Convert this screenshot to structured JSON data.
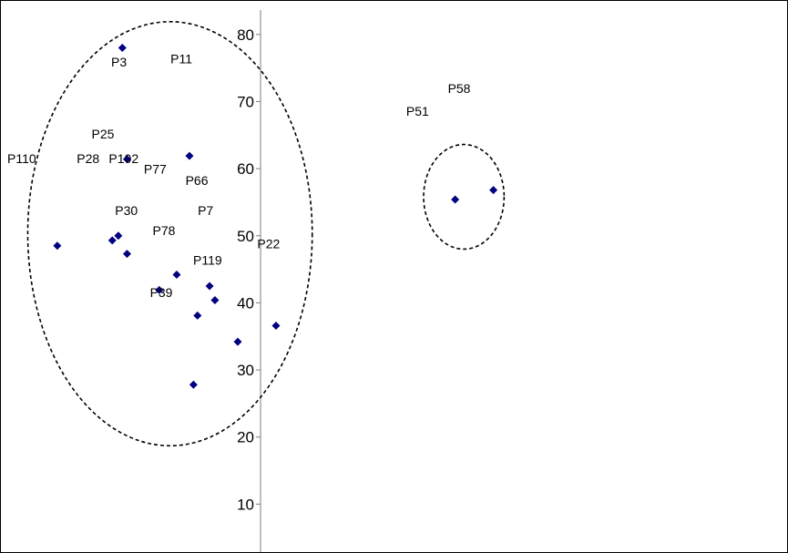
{
  "chart_data": {
    "type": "scatter",
    "title": "",
    "xlabel": "",
    "ylabel": "",
    "ylim": [
      0,
      84
    ],
    "xlim": [
      -38.7,
      36.3
    ],
    "y_ticks": [
      10,
      20,
      30,
      40,
      50,
      60,
      70,
      80
    ],
    "y_tick_labels": [
      "10",
      "20",
      "30",
      "40",
      "50",
      "60",
      "70",
      "80"
    ],
    "grid": false,
    "legend": "none",
    "marker": "diamond",
    "marker_color": "#000080",
    "points": [
      {
        "x": -30.3,
        "y": 48.5
      },
      {
        "x": -22.1,
        "y": 49.3
      },
      {
        "x": -21.2,
        "y": 50.0
      },
      {
        "x": -20.6,
        "y": 78.0
      },
      {
        "x": -19.9,
        "y": 61.4
      },
      {
        "x": -19.9,
        "y": 47.3
      },
      {
        "x": -15.1,
        "y": 41.9
      },
      {
        "x": -12.5,
        "y": 44.2
      },
      {
        "x": -10.6,
        "y": 61.9
      },
      {
        "x": -10.0,
        "y": 27.8
      },
      {
        "x": -9.4,
        "y": 38.1
      },
      {
        "x": -7.6,
        "y": 42.5
      },
      {
        "x": -6.8,
        "y": 40.4
      },
      {
        "x": -3.4,
        "y": 34.2
      },
      {
        "x": 2.3,
        "y": 36.6
      },
      {
        "x": 29.0,
        "y": 55.4
      },
      {
        "x": 34.7,
        "y": 56.8
      }
    ],
    "point_labels": [
      {
        "text": "P3",
        "x": -21.1,
        "y": 75.2
      },
      {
        "text": "P11",
        "x": -11.8,
        "y": 75.7
      },
      {
        "text": "P25",
        "x": -23.5,
        "y": 64.5
      },
      {
        "text": "P110",
        "x": -35.6,
        "y": 60.8
      },
      {
        "text": "P28",
        "x": -25.7,
        "y": 60.8
      },
      {
        "text": "P102",
        "x": -20.4,
        "y": 60.8
      },
      {
        "text": "P77",
        "x": -15.7,
        "y": 59.3
      },
      {
        "text": "P66",
        "x": -9.5,
        "y": 57.6
      },
      {
        "text": "P30",
        "x": -20.0,
        "y": 53.1
      },
      {
        "text": "P7",
        "x": -8.2,
        "y": 53.1
      },
      {
        "text": "P78",
        "x": -14.4,
        "y": 50.1
      },
      {
        "text": "P119",
        "x": -7.9,
        "y": 45.7
      },
      {
        "text": "P39",
        "x": -14.8,
        "y": 40.9
      },
      {
        "text": "P22",
        "x": 1.2,
        "y": 48.1
      },
      {
        "text": "P51",
        "x": 23.4,
        "y": 67.9
      },
      {
        "text": "P58",
        "x": 29.6,
        "y": 71.3
      }
    ],
    "clusters": [
      {
        "cx": -13.5,
        "cy": 50.3,
        "rx": 21.2,
        "ry": 31.6
      },
      {
        "cx": 30.3,
        "cy": 55.8,
        "rx": 6.0,
        "ry": 7.8
      }
    ]
  }
}
